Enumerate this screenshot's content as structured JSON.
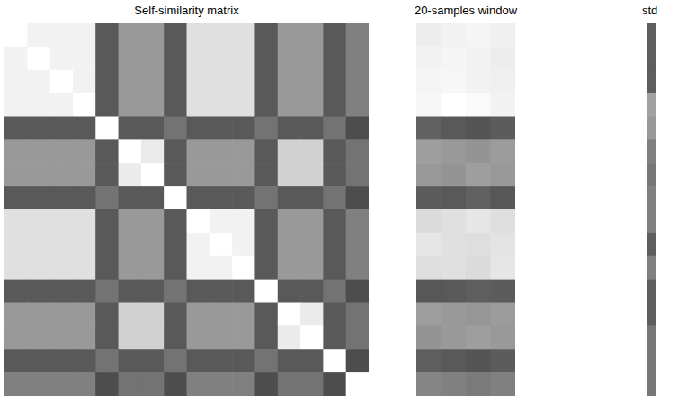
{
  "chart_data": [
    {
      "type": "heatmap",
      "title": "Self-similarity matrix",
      "tick_labels": false,
      "zlim": [
        0,
        1
      ],
      "window_columns": [
        3,
        4
      ],
      "cells": [
        [
          1.0,
          0.95,
          0.95,
          0.95,
          0.35,
          0.6,
          0.6,
          0.35,
          0.88,
          0.88,
          0.88,
          0.35,
          0.6,
          0.6,
          0.35,
          0.5
        ],
        [
          0.95,
          1.0,
          0.95,
          0.95,
          0.35,
          0.6,
          0.6,
          0.35,
          0.88,
          0.88,
          0.88,
          0.35,
          0.6,
          0.6,
          0.35,
          0.5
        ],
        [
          0.95,
          0.95,
          1.0,
          0.95,
          0.35,
          0.6,
          0.6,
          0.35,
          0.88,
          0.88,
          0.88,
          0.35,
          0.6,
          0.6,
          0.35,
          0.5
        ],
        [
          0.95,
          0.95,
          0.95,
          1.0,
          0.35,
          0.6,
          0.6,
          0.35,
          0.88,
          0.88,
          0.88,
          0.35,
          0.6,
          0.6,
          0.35,
          0.5
        ],
        [
          0.35,
          0.35,
          0.35,
          0.35,
          1.0,
          0.35,
          0.35,
          0.45,
          0.35,
          0.35,
          0.35,
          0.45,
          0.35,
          0.35,
          0.45,
          0.3
        ],
        [
          0.6,
          0.6,
          0.6,
          0.6,
          0.35,
          1.0,
          0.92,
          0.35,
          0.6,
          0.6,
          0.6,
          0.35,
          0.82,
          0.82,
          0.35,
          0.45
        ],
        [
          0.6,
          0.6,
          0.6,
          0.6,
          0.35,
          0.92,
          1.0,
          0.35,
          0.6,
          0.6,
          0.6,
          0.35,
          0.82,
          0.82,
          0.35,
          0.45
        ],
        [
          0.35,
          0.35,
          0.35,
          0.35,
          0.45,
          0.35,
          0.35,
          1.0,
          0.35,
          0.35,
          0.35,
          0.45,
          0.35,
          0.35,
          0.45,
          0.3
        ],
        [
          0.88,
          0.88,
          0.88,
          0.88,
          0.35,
          0.6,
          0.6,
          0.35,
          1.0,
          0.95,
          0.95,
          0.35,
          0.6,
          0.6,
          0.35,
          0.5
        ],
        [
          0.88,
          0.88,
          0.88,
          0.88,
          0.35,
          0.6,
          0.6,
          0.35,
          0.95,
          1.0,
          0.95,
          0.35,
          0.6,
          0.6,
          0.35,
          0.5
        ],
        [
          0.88,
          0.88,
          0.88,
          0.88,
          0.35,
          0.6,
          0.6,
          0.35,
          0.95,
          0.95,
          1.0,
          0.35,
          0.6,
          0.6,
          0.35,
          0.5
        ],
        [
          0.35,
          0.35,
          0.35,
          0.35,
          0.45,
          0.35,
          0.35,
          0.45,
          0.35,
          0.35,
          0.35,
          1.0,
          0.35,
          0.35,
          0.45,
          0.3
        ],
        [
          0.6,
          0.6,
          0.6,
          0.6,
          0.35,
          0.82,
          0.82,
          0.35,
          0.6,
          0.6,
          0.6,
          0.35,
          1.0,
          0.92,
          0.35,
          0.45
        ],
        [
          0.6,
          0.6,
          0.6,
          0.6,
          0.35,
          0.82,
          0.82,
          0.35,
          0.6,
          0.6,
          0.6,
          0.35,
          0.92,
          1.0,
          0.35,
          0.45
        ],
        [
          0.35,
          0.35,
          0.35,
          0.35,
          0.45,
          0.35,
          0.35,
          0.45,
          0.35,
          0.35,
          0.35,
          0.45,
          0.35,
          0.35,
          1.0,
          0.3
        ],
        [
          0.5,
          0.5,
          0.5,
          0.5,
          0.3,
          0.45,
          0.45,
          0.3,
          0.5,
          0.5,
          0.5,
          0.3,
          0.45,
          0.45,
          0.3,
          1.0
        ]
      ]
    },
    {
      "type": "heatmap",
      "title": "20-samples window",
      "tick_labels": false,
      "zlim": [
        0,
        1
      ],
      "cells": [
        [
          0.93,
          0.95,
          0.96,
          0.94
        ],
        [
          0.95,
          0.96,
          0.95,
          0.93
        ],
        [
          0.96,
          0.97,
          0.95,
          0.94
        ],
        [
          0.97,
          1.0,
          0.98,
          0.95
        ],
        [
          0.38,
          0.35,
          0.33,
          0.36
        ],
        [
          0.62,
          0.6,
          0.58,
          0.61
        ],
        [
          0.6,
          0.58,
          0.62,
          0.6
        ],
        [
          0.36,
          0.35,
          0.38,
          0.34
        ],
        [
          0.86,
          0.88,
          0.9,
          0.87
        ],
        [
          0.9,
          0.88,
          0.87,
          0.89
        ],
        [
          0.87,
          0.88,
          0.86,
          0.9
        ],
        [
          0.34,
          0.35,
          0.37,
          0.36
        ],
        [
          0.62,
          0.6,
          0.59,
          0.61
        ],
        [
          0.58,
          0.6,
          0.62,
          0.6
        ],
        [
          0.37,
          0.35,
          0.33,
          0.36
        ],
        [
          0.52,
          0.5,
          0.48,
          0.5
        ]
      ]
    },
    {
      "type": "heatmap",
      "title": "std",
      "tick_labels": false,
      "zlim": [
        0,
        0.03
      ],
      "cells": [
        [
          0.011
        ],
        [
          0.011
        ],
        [
          0.011
        ],
        [
          0.019
        ],
        [
          0.018
        ],
        [
          0.015
        ],
        [
          0.014
        ],
        [
          0.015
        ],
        [
          0.015
        ],
        [
          0.011
        ],
        [
          0.015
        ],
        [
          0.011
        ],
        [
          0.011
        ],
        [
          0.014
        ],
        [
          0.014
        ],
        [
          0.014
        ]
      ]
    }
  ]
}
